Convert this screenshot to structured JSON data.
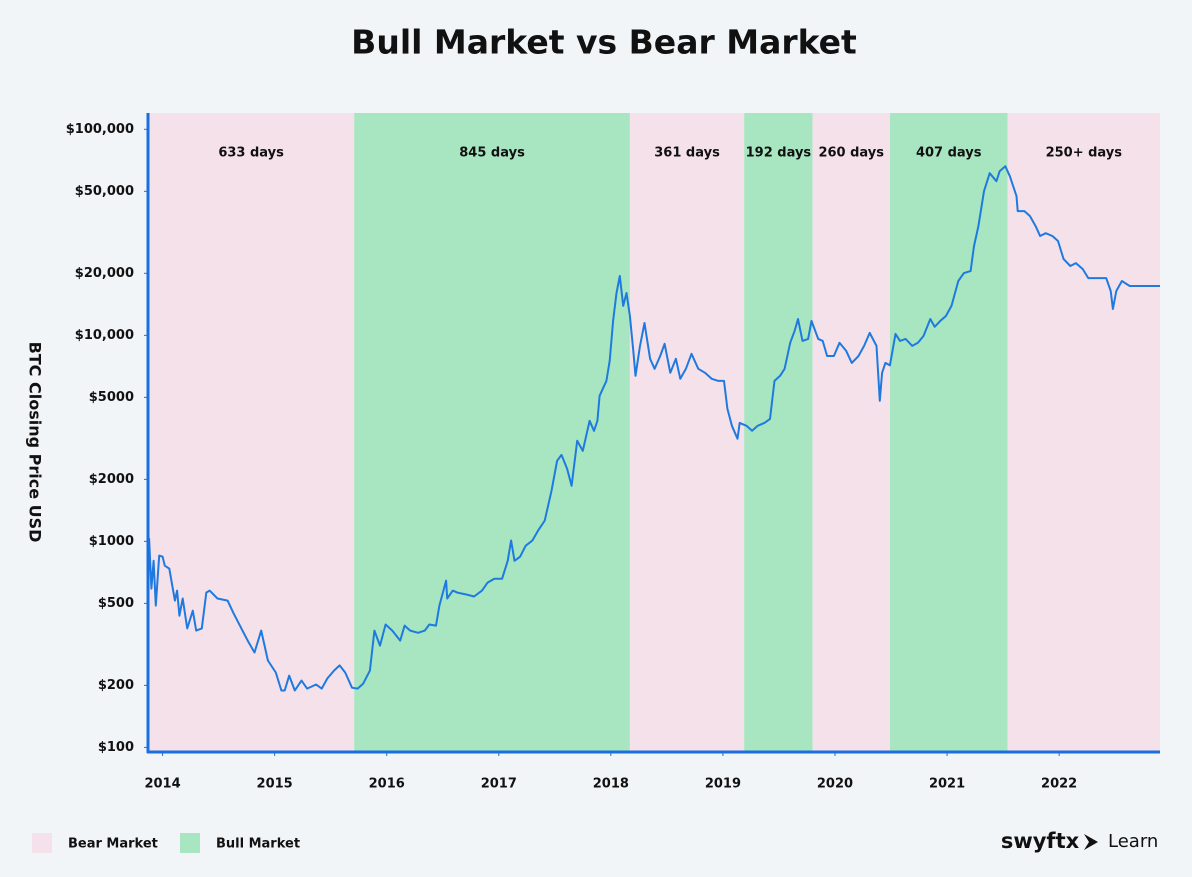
{
  "chart_data": {
    "type": "line",
    "title": "Bull Market vs Bear Market",
    "y_label": "BTC Closing Price USD",
    "yscale": "log",
    "ylim": [
      95,
      120000
    ],
    "yticks": [
      {
        "value": 100,
        "label": "$100"
      },
      {
        "value": 200,
        "label": "$200"
      },
      {
        "value": 500,
        "label": "$500"
      },
      {
        "value": 1000,
        "label": "$1000"
      },
      {
        "value": 2000,
        "label": "$2000"
      },
      {
        "value": 5000,
        "label": "$5000"
      },
      {
        "value": 10000,
        "label": "$10,000"
      },
      {
        "value": 20000,
        "label": "$20,000"
      },
      {
        "value": 50000,
        "label": "$50,000"
      },
      {
        "value": 100000,
        "label": "$100,000"
      }
    ],
    "xlim": [
      2013.87,
      2022.9
    ],
    "xticks": [
      2014,
      2015,
      2016,
      2017,
      2018,
      2019,
      2020,
      2021,
      2022
    ],
    "color": "#1f7ae0",
    "axis_color": "#1a6fe0",
    "markets": [
      {
        "name": "Bear Market",
        "color": "#f5e1ea"
      },
      {
        "name": "Bull Market",
        "color": "#a8e6c1"
      }
    ],
    "bands": [
      {
        "start": 2013.87,
        "end": 2015.71,
        "label": "633 days",
        "market": 0
      },
      {
        "start": 2015.71,
        "end": 2018.17,
        "label": "845 days",
        "market": 1
      },
      {
        "start": 2018.17,
        "end": 2019.19,
        "label": "361 days",
        "market": 0
      },
      {
        "start": 2019.19,
        "end": 2019.8,
        "label": "192 days",
        "market": 1
      },
      {
        "start": 2019.8,
        "end": 2020.49,
        "label": "260 days",
        "market": 0
      },
      {
        "start": 2020.49,
        "end": 2021.54,
        "label": "407 days",
        "market": 1
      },
      {
        "start": 2021.54,
        "end": 2022.9,
        "label": "250+ days",
        "market": 0
      }
    ],
    "x": [
      2013.87,
      2013.88,
      2013.9,
      2013.92,
      2013.94,
      2013.97,
      2014,
      2014.02,
      2014.06,
      2014.11,
      2014.13,
      2014.15,
      2014.18,
      2014.22,
      2014.27,
      2014.3,
      2014.35,
      2014.39,
      2014.42,
      2014.49,
      2014.58,
      2014.63,
      2014.69,
      2014.76,
      2014.82,
      2014.88,
      2014.94,
      2015.01,
      2015.06,
      2015.09,
      2015.13,
      2015.18,
      2015.24,
      2015.29,
      2015.37,
      2015.42,
      2015.47,
      2015.53,
      2015.58,
      2015.63,
      2015.69,
      2015.74,
      2015.79,
      2015.85,
      2015.89,
      2015.94,
      2015.99,
      2016.05,
      2016.12,
      2016.16,
      2016.21,
      2016.28,
      2016.34,
      2016.38,
      2016.44,
      2016.47,
      2016.53,
      2016.54,
      2016.59,
      2016.63,
      2016.71,
      2016.78,
      2016.85,
      2016.9,
      2016.96,
      2017.03,
      2017.08,
      2017.11,
      2017.14,
      2017.19,
      2017.24,
      2017.3,
      2017.35,
      2017.41,
      2017.47,
      2017.52,
      2017.56,
      2017.61,
      2017.65,
      2017.7,
      2017.75,
      2017.81,
      2017.85,
      2017.88,
      2017.9,
      2017.96,
      2017.99,
      2018.02,
      2018.05,
      2018.08,
      2018.11,
      2018.14,
      2018.17,
      2018.2,
      2018.22,
      2018.26,
      2018.3,
      2018.35,
      2018.39,
      2018.44,
      2018.48,
      2018.53,
      2018.58,
      2018.62,
      2018.67,
      2018.72,
      2018.78,
      2018.84,
      2018.9,
      2018.96,
      2019.01,
      2019.04,
      2019.08,
      2019.13,
      2019.15,
      2019.21,
      2019.26,
      2019.31,
      2019.37,
      2019.42,
      2019.46,
      2019.51,
      2019.55,
      2019.6,
      2019.64,
      2019.67,
      2019.71,
      2019.76,
      2019.79,
      2019.85,
      2019.89,
      2019.93,
      2019.99,
      2020.04,
      2020.1,
      2020.15,
      2020.21,
      2020.26,
      2020.31,
      2020.37,
      2020.4,
      2020.42,
      2020.45,
      2020.49,
      2020.54,
      2020.58,
      2020.63,
      2020.69,
      2020.74,
      2020.79,
      2020.85,
      2020.89,
      2020.94,
      2020.99,
      2021.04,
      2021.1,
      2021.15,
      2021.21,
      2021.24,
      2021.28,
      2021.33,
      2021.38,
      2021.44,
      2021.47,
      2021.52,
      2021.56,
      2021.62,
      2021.63,
      2021.69,
      2021.74,
      2021.79,
      2021.83,
      2021.88,
      2021.94,
      2021.99,
      2022.04,
      2022.1,
      2022.15,
      2022.21,
      2022.26,
      2022.31,
      2022.37,
      2022.42,
      2022.46,
      2022.48,
      2022.51,
      2022.56,
      2022.63,
      2022.9
    ],
    "values": [
      1010,
      1030,
      590,
      805,
      488,
      853,
      843,
      762,
      738,
      516,
      577,
      436,
      528,
      378,
      461,
      369,
      378,
      564,
      577,
      528,
      516,
      451,
      390,
      330,
      289,
      369,
      264,
      231,
      189,
      189,
      223,
      189,
      211,
      193,
      202,
      193,
      216,
      236,
      250,
      231,
      195,
      193,
      204,
      236,
      369,
      312,
      395,
      369,
      330,
      390,
      369,
      360,
      369,
      395,
      390,
      488,
      645,
      528,
      577,
      564,
      552,
      540,
      577,
      631,
      659,
      659,
      805,
      1010,
      805,
      843,
      953,
      1010,
      1127,
      1260,
      1760,
      2460,
      2630,
      2250,
      1860,
      3080,
      2750,
      3850,
      3440,
      3850,
      5090,
      6010,
      7520,
      11750,
      16060,
      19410,
      13900,
      16060,
      12420,
      8400,
      6360,
      8890,
      11480,
      7690,
      6880,
      7940,
      9100,
      6580,
      7690,
      6150,
      6880,
      8140,
      6880,
      6580,
      6150,
      6010,
      6010,
      4400,
      3640,
      3150,
      3760,
      3640,
      3440,
      3640,
      3760,
      3930,
      6010,
      6360,
      6880,
      9200,
      10500,
      12000,
      9400,
      9610,
      11750,
      9610,
      9400,
      7940,
      7940,
      9200,
      8400,
      7350,
      7940,
      8890,
      10280,
      8890,
      4810,
      6580,
      7350,
      7150,
      10160,
      9400,
      9610,
      8890,
      9200,
      9930,
      12000,
      11000,
      11750,
      12420,
      13900,
      18360,
      20050,
      20510,
      27100,
      33900,
      50100,
      61250,
      55980,
      62680,
      66220,
      59300,
      47400,
      40090,
      40090,
      37930,
      33900,
      30340,
      31330,
      30340,
      28700,
      23450,
      21700,
      22430,
      20990,
      18970,
      18970,
      18970,
      18970,
      16410,
      13430,
      16410,
      18360,
      17350,
      17350
    ]
  },
  "brand": {
    "name": "swyftx",
    "sub": "Learn"
  }
}
